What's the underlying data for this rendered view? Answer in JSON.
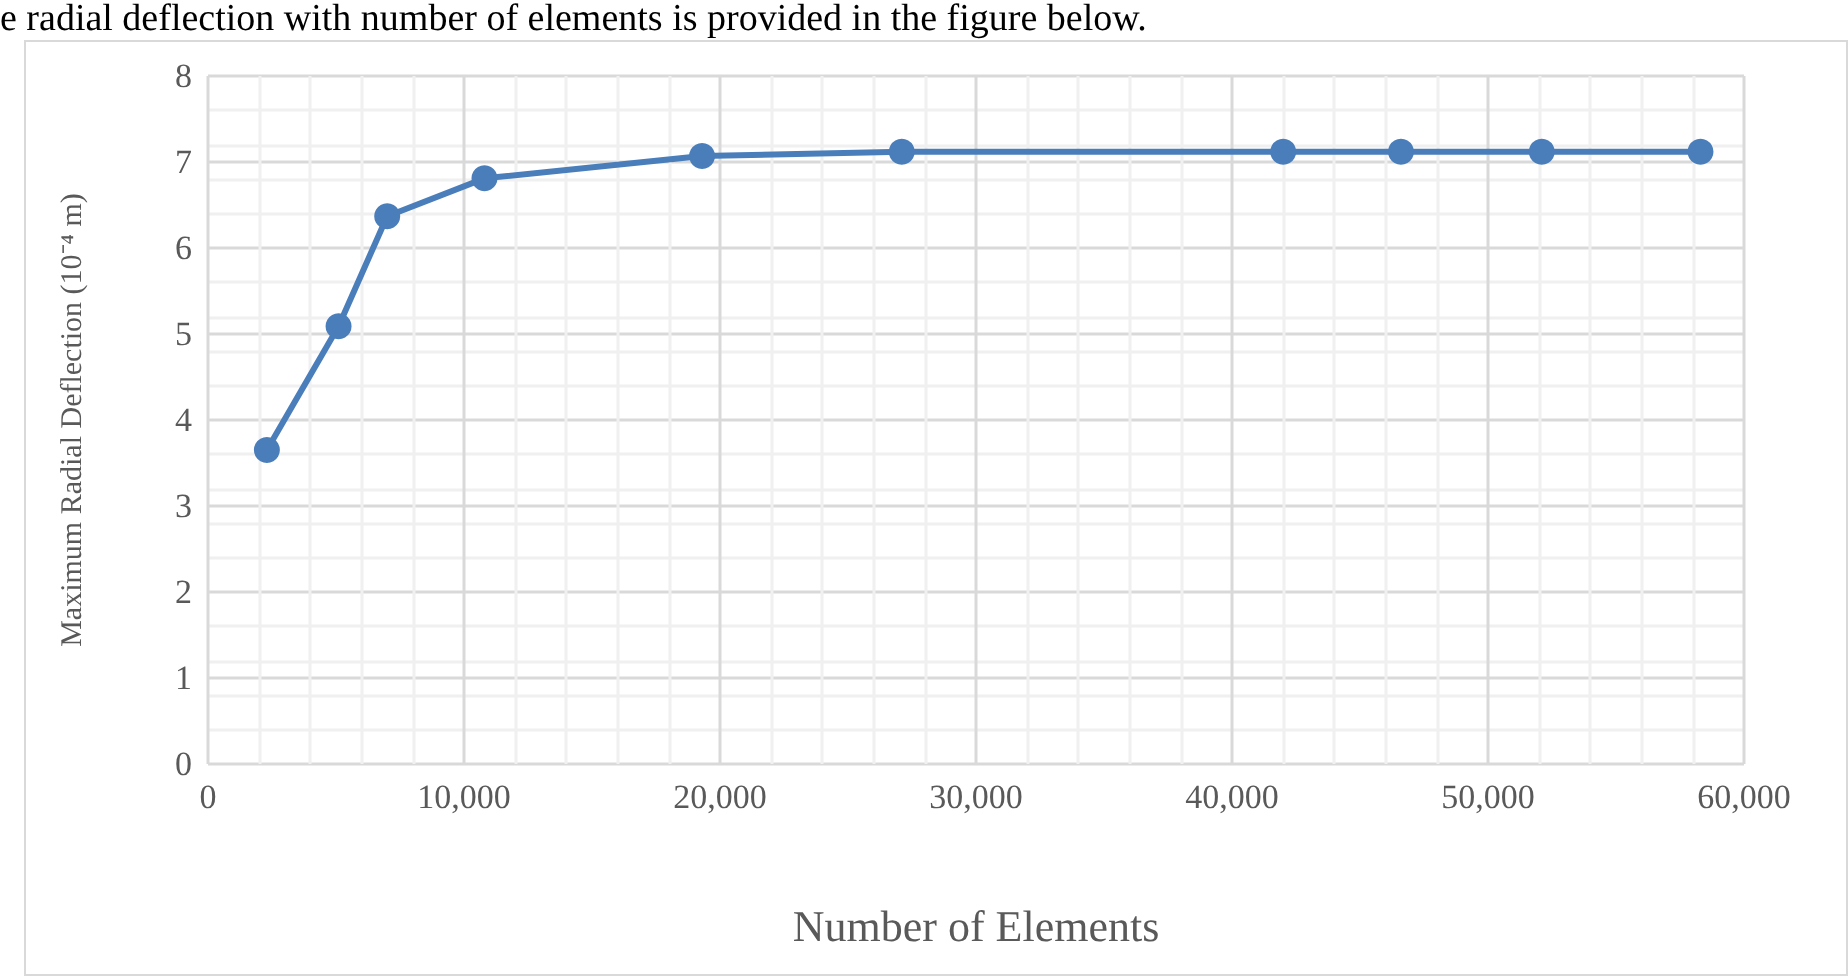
{
  "chart_data": {
    "type": "line",
    "xlabel": "Number of Elements",
    "ylabel": "Maximum Radial Deflection (10⁻⁴ m)",
    "annotations": [
      "e radial deflection with number of elements is provided in the figure below."
    ],
    "x": [
      2300,
      5100,
      7000,
      10800,
      19300,
      27100,
      42000,
      46600,
      52100,
      58300
    ],
    "series": [
      {
        "color": "#4a7ebb",
        "values": [
          3.65,
          5.09,
          6.37,
          6.81,
          7.07,
          7.12,
          7.12,
          7.12,
          7.12,
          7.12
        ]
      }
    ],
    "xlim": [
      0,
      60000
    ],
    "xticks": [
      0,
      {
        "value": 10000,
        "label": "10,000"
      },
      {
        "value": 20000,
        "label": "20,000"
      },
      {
        "value": 30000,
        "label": "30,000"
      },
      {
        "value": 40000,
        "label": "40,000"
      },
      {
        "value": 50000,
        "label": "50,000"
      },
      {
        "value": 60000,
        "label": "60,000"
      }
    ],
    "ylim": [
      0,
      8
    ],
    "yticks": [
      0,
      1,
      2,
      3,
      4,
      5,
      6,
      7,
      8
    ],
    "grid": true,
    "marker": "circle",
    "line_style": "solid"
  }
}
